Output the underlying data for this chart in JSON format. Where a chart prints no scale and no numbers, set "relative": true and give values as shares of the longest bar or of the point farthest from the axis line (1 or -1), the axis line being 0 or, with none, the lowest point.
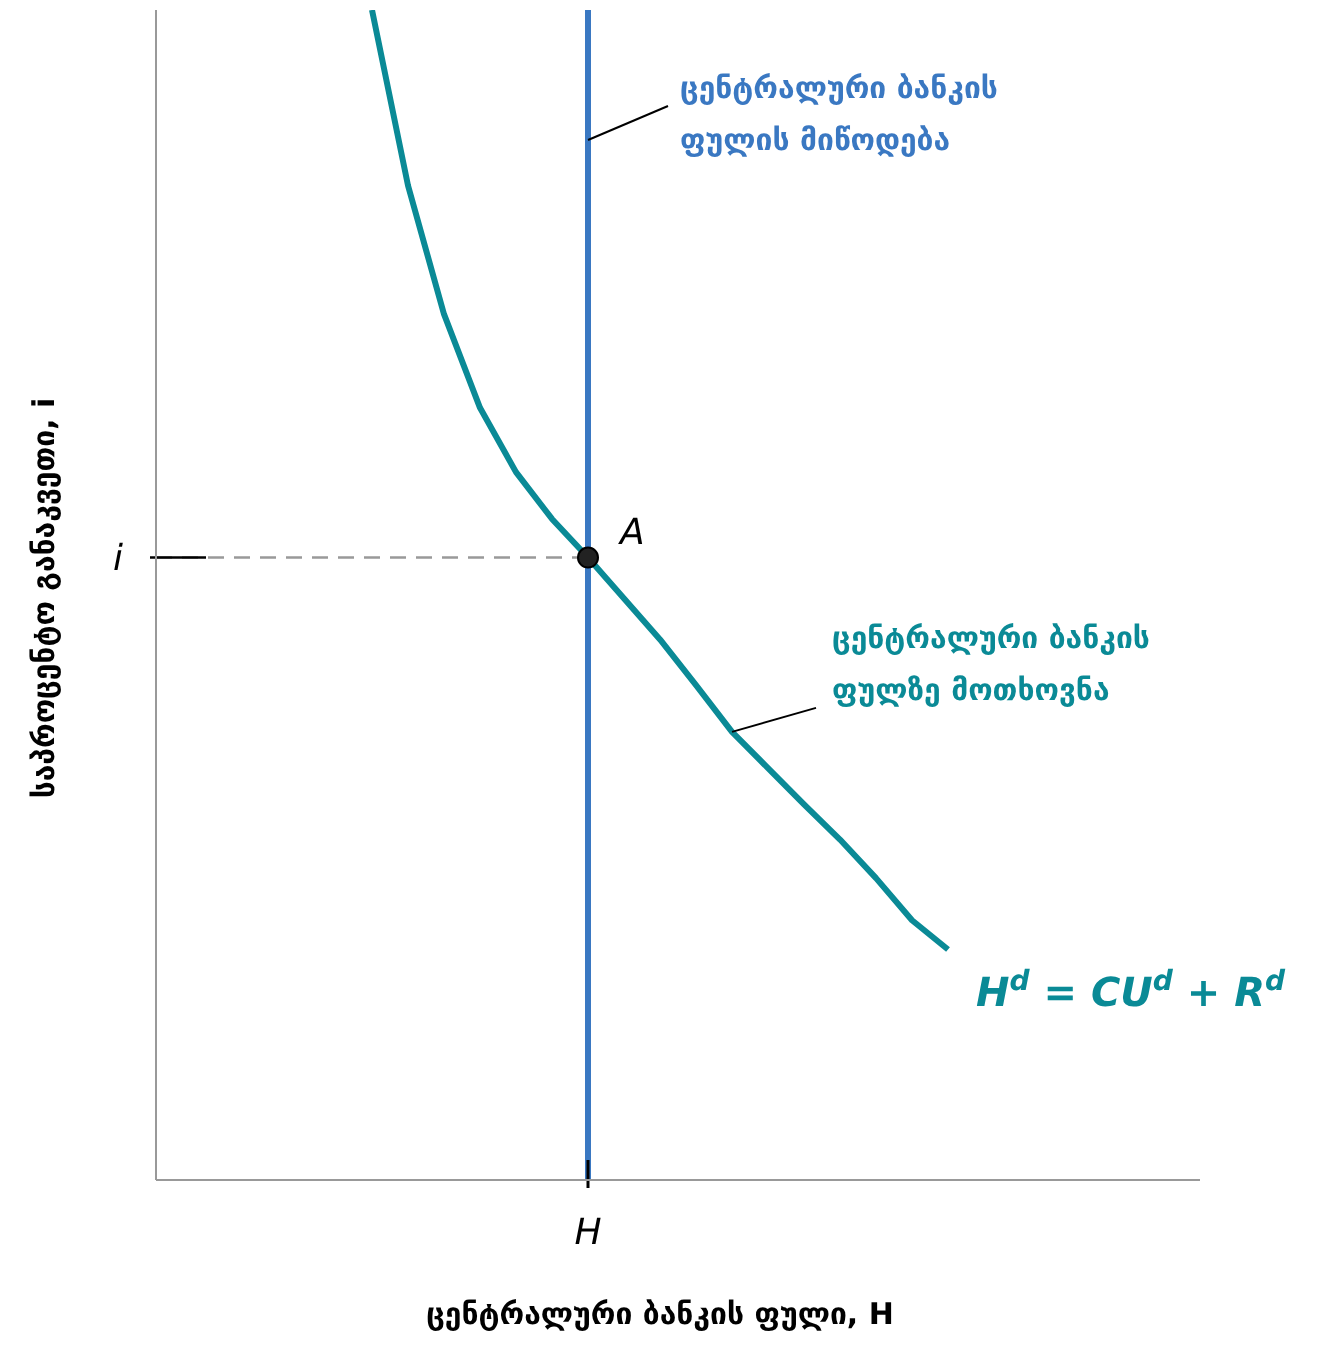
{
  "chart_data": {
    "type": "line",
    "relative": true,
    "xlabel": "ცენტრალური ბანკის ფული, H",
    "ylabel": "საპროცენტო განაკვეთი, i",
    "categories": [
      null,
      null,
      null,
      null,
      null,
      null,
      null,
      null,
      null,
      null,
      null,
      null,
      null,
      null,
      null,
      null,
      null,
      null,
      null,
      null,
      null,
      null,
      null,
      null,
      null,
      null,
      null,
      null,
      null,
      null
    ],
    "series": [
      {
        "name": "H$^{d}$ = CU$^{d}$ + R$^{d}$",
        "color": "#0a8a96",
        "values": [
          null,
          null,
          null,
          null,
          null,
          null,
          1.0,
          0.85,
          0.74,
          0.66,
          0.605,
          0.565,
          0.532,
          0.497,
          0.462,
          0.423,
          0.383,
          0.352,
          0.321,
          0.291,
          0.258,
          0.222,
          0.197,
          null,
          null,
          null,
          null,
          null,
          null,
          null
        ]
      }
    ],
    "ref_lines": [
      {
        "axis": "x",
        "label": "H",
        "color": "#3a78c2",
        "line_style": "solid"
      },
      {
        "axis": "y",
        "value": 0.532,
        "label": "i",
        "color": "#999999",
        "line_style": "dashed"
      }
    ],
    "annotations": [
      "A",
      "ცენტრალური ბანკის ფულზე მოთხოვნა",
      "ცენტრალური ბანკის ფულის მიწოდება"
    ],
    "marker": "none"
  }
}
